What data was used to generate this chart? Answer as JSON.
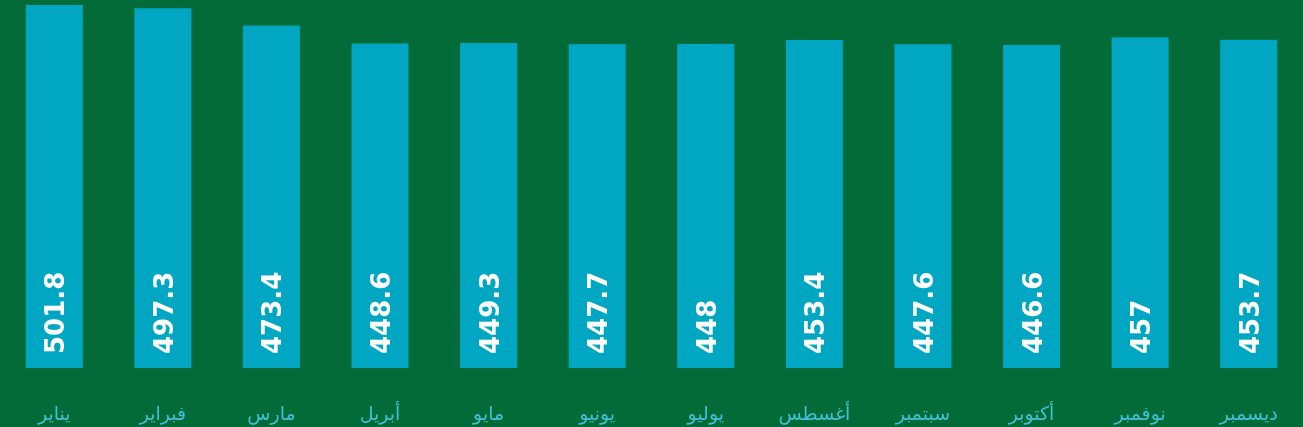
{
  "chart_data": {
    "type": "bar",
    "categories": [
      "يناير",
      "فبراير",
      "مارس",
      "أبريل",
      "مايو",
      "يونيو",
      "يوليو",
      "أغسطس",
      "سبتمبر",
      "أكتوبر",
      "نوفمبر",
      "ديسمبر"
    ],
    "values": [
      501.8,
      497.3,
      473.4,
      448.6,
      449.3,
      447.7,
      448,
      453.4,
      447.6,
      446.6,
      457,
      453.7
    ],
    "color": "#00a6c2",
    "data_labels": true,
    "tick_labels": "x"
  }
}
